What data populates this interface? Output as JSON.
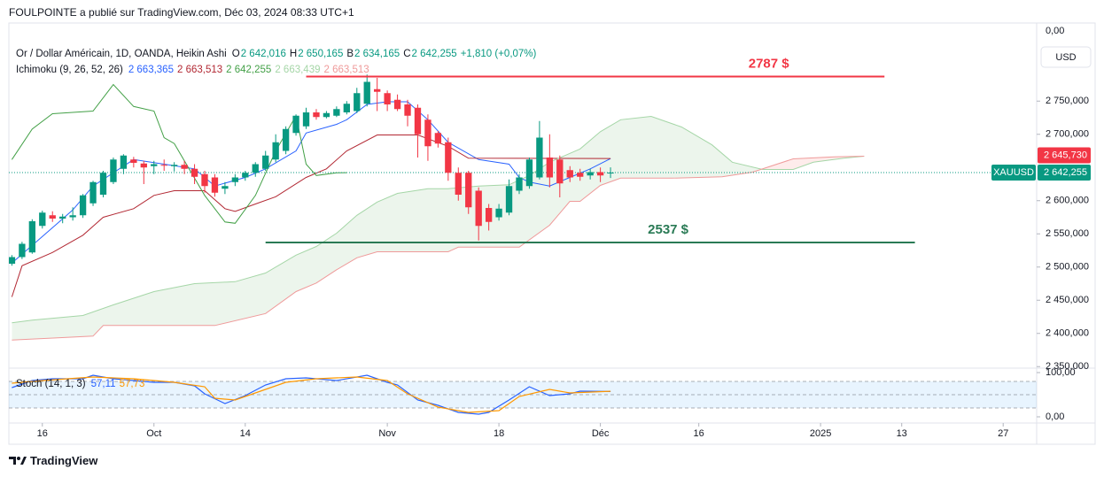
{
  "header": {
    "title": "FOULPOINTE a publié sur TradingView.com, Déc 03, 2024 08:33 UTC+1"
  },
  "footer": {
    "brand": "TradingView"
  },
  "chart_data": {
    "type": "candlestick",
    "legend": {
      "title": "Or / Dollar Américain, 1D, OANDA, Heikin Ashi",
      "ohlc": [
        {
          "key": "O",
          "value": "2 642,016"
        },
        {
          "key": "H",
          "value": "2 650,165"
        },
        {
          "key": "B",
          "value": "2 634,165"
        },
        {
          "key": "C",
          "value": "2 642,255"
        }
      ],
      "change": "+1,810 (+0,07%)"
    },
    "x": [
      -3,
      -2,
      -1,
      0,
      1,
      2,
      3,
      4,
      5,
      6,
      7,
      8,
      9,
      10,
      11,
      12,
      13,
      14,
      15,
      16,
      17,
      18,
      19,
      20,
      21,
      22,
      23,
      24,
      25,
      26,
      27,
      28,
      29,
      30,
      31,
      32,
      33,
      34,
      35,
      36,
      37,
      38,
      39,
      40,
      41,
      42,
      43,
      44,
      45,
      46,
      47,
      48,
      49,
      50,
      51,
      52,
      53,
      54,
      55,
      56
    ],
    "open": [
      2505,
      2515,
      2522,
      2562,
      2578,
      2573,
      2575,
      2578,
      2596,
      2609,
      2628,
      2648,
      2662,
      2656,
      2652,
      2654,
      2652,
      2654,
      2648,
      2640,
      2635,
      2618,
      2628,
      2635,
      2642,
      2648,
      2662,
      2675,
      2702,
      2712,
      2733,
      2726,
      2728,
      2733,
      2735,
      2746,
      2768,
      2762,
      2752,
      2745,
      2740,
      2722,
      2702,
      2688,
      2642,
      2642,
      2615,
      2589,
      2575,
      2582,
      2615,
      2622,
      2635,
      2665,
      2662,
      2646,
      2642,
      2638,
      2643,
      2642.016
    ],
    "high": [
      2518,
      2538,
      2572,
      2585,
      2584,
      2580,
      2590,
      2610,
      2630,
      2645,
      2665,
      2670,
      2666,
      2660,
      2660,
      2662,
      2658,
      2660,
      2655,
      2645,
      2640,
      2628,
      2640,
      2645,
      2658,
      2675,
      2700,
      2712,
      2730,
      2740,
      2738,
      2735,
      2742,
      2750,
      2770,
      2790,
      2785,
      2766,
      2760,
      2752,
      2745,
      2730,
      2705,
      2695,
      2650,
      2645,
      2620,
      2595,
      2595,
      2632,
      2640,
      2665,
      2720,
      2700,
      2668,
      2652,
      2648,
      2648,
      2650,
      2650.165
    ],
    "low": [
      2502,
      2512,
      2520,
      2558,
      2568,
      2566,
      2570,
      2574,
      2592,
      2605,
      2625,
      2640,
      2650,
      2625,
      2640,
      2645,
      2644,
      2640,
      2625,
      2612,
      2606,
      2610,
      2622,
      2630,
      2636,
      2645,
      2658,
      2670,
      2698,
      2708,
      2722,
      2724,
      2726,
      2730,
      2732,
      2742,
      2735,
      2735,
      2735,
      2712,
      2665,
      2660,
      2680,
      2630,
      2600,
      2580,
      2540,
      2555,
      2570,
      2578,
      2610,
      2618,
      2632,
      2620,
      2605,
      2628,
      2630,
      2632,
      2628,
      2634.165
    ],
    "close": [
      2515,
      2535,
      2569,
      2582,
      2573,
      2576,
      2578,
      2608,
      2628,
      2642,
      2662,
      2668,
      2657,
      2650,
      2655,
      2653,
      2654,
      2648,
      2636,
      2622,
      2612,
      2622,
      2635,
      2642,
      2655,
      2668,
      2688,
      2708,
      2728,
      2733,
      2726,
      2732,
      2738,
      2746,
      2762,
      2779,
      2764,
      2745,
      2738,
      2728,
      2700,
      2682,
      2686,
      2642,
      2609,
      2590,
      2562,
      2568,
      2588,
      2622,
      2635,
      2662,
      2695,
      2635,
      2626,
      2635,
      2636,
      2643,
      2638,
      2642.255
    ],
    "up_color": "#089981",
    "down_color": "#f23645",
    "xlim": [
      -3.3,
      98
    ],
    "xticks": [
      {
        "value": 0,
        "label": "16"
      },
      {
        "value": 11,
        "label": "Oct"
      },
      {
        "value": 20,
        "label": "14"
      },
      {
        "value": 34,
        "label": "Nov"
      },
      {
        "value": 45,
        "label": "18"
      },
      {
        "value": 55,
        "label": "Déc"
      },
      {
        "value": 64.7,
        "label": "16"
      },
      {
        "value": 76.7,
        "label": "2025"
      },
      {
        "value": 84.7,
        "label": "13"
      },
      {
        "value": 94.7,
        "label": "27"
      }
    ],
    "ylim": [
      2349,
      2865
    ],
    "yticks": [
      {
        "value": 2350,
        "label": "2 350,000"
      },
      {
        "value": 2400,
        "label": "2 400,000"
      },
      {
        "value": 2450,
        "label": "2 450,000"
      },
      {
        "value": 2500,
        "label": "2 500,000"
      },
      {
        "value": 2550,
        "label": "2 550,000"
      },
      {
        "value": 2600,
        "label": "2 600,000"
      },
      {
        "value": 2700,
        "label": "2 700,000"
      },
      {
        "value": 2750,
        "label": "2 750,000"
      }
    ],
    "top_label": "0,00",
    "currency": "USD",
    "symbol": "XAUUSD",
    "badges": [
      {
        "value": 2645.73,
        "label": "2 645,730",
        "color": "#f23645"
      },
      {
        "value": 2642.255,
        "label": "2 642,255",
        "color": "#089981"
      }
    ],
    "levels": [
      {
        "value": 2787,
        "label": "2787 $",
        "color": "#f23645",
        "x": [
          26,
          83
        ]
      },
      {
        "value": 2537,
        "label": "2537 $",
        "color": "#2a7a55",
        "x": [
          22,
          86
        ]
      }
    ],
    "ichimoku": {
      "title": "Ichimoku (9, 26, 52, 26)",
      "cloud_up_color": "#43a047",
      "cloud_down_color": "#f44336",
      "lines": [
        {
          "color": "#2962ff",
          "legend_value": "2 663,365",
          "x": [
            -3,
            0,
            3,
            5,
            9,
            12,
            15,
            17,
            20,
            22,
            25,
            26,
            29,
            30,
            32,
            34,
            36,
            38,
            40,
            43,
            46,
            47,
            48,
            50,
            52,
            54,
            56
          ],
          "values": [
            2506,
            2546,
            2586,
            2622,
            2662,
            2655,
            2648,
            2622,
            2635,
            2648,
            2675,
            2702,
            2715,
            2722,
            2745,
            2749,
            2749,
            2722,
            2688,
            2662,
            2655,
            2635,
            2628,
            2622,
            2635,
            2648,
            2663.365
          ]
        },
        {
          "color": "#b22833",
          "legend_value": "2 663,513",
          "x": [
            -3,
            -2,
            1,
            4,
            6,
            9,
            11,
            13,
            16,
            18,
            19,
            21,
            23,
            26,
            28,
            30,
            33,
            37,
            40,
            42,
            56
          ],
          "values": [
            2455,
            2502,
            2522,
            2548,
            2575,
            2588,
            2608,
            2615,
            2615,
            2588,
            2584,
            2595,
            2606,
            2635,
            2648,
            2675,
            2699,
            2699,
            2682,
            2664,
            2663.513
          ]
        },
        {
          "color": "#43a047",
          "legend_value": "2 642,255",
          "x": [
            -3,
            -1,
            1,
            5,
            7,
            9,
            11,
            12,
            13,
            16,
            18,
            19,
            21,
            23,
            25,
            26,
            27,
            29,
            30
          ],
          "values": [
            2662,
            2708,
            2731,
            2735,
            2775,
            2742,
            2735,
            2695,
            2686,
            2608,
            2568,
            2566,
            2608,
            2675,
            2728,
            2655,
            2638,
            2642,
            2642.255
          ]
        },
        {
          "color": "#a5d6a7",
          "legend_value": "2 663,439",
          "x": [
            -3,
            -1,
            4,
            7,
            11,
            15,
            19,
            22,
            25,
            27,
            29,
            31,
            33,
            35,
            38,
            40,
            43,
            46,
            48,
            50,
            53,
            55,
            57,
            60,
            63,
            66,
            68,
            71,
            74,
            76,
            79,
            81
          ],
          "values": [
            2416,
            2420,
            2427,
            2443,
            2463,
            2475,
            2478,
            2491,
            2518,
            2531,
            2551,
            2578,
            2598,
            2611,
            2618,
            2618,
            2622,
            2624,
            2638,
            2658,
            2678,
            2704,
            2722,
            2727,
            2711,
            2684,
            2658,
            2647,
            2647,
            2658,
            2664,
            2667
          ]
        },
        {
          "color": "#ef9a9a",
          "legend_value": "2 663,513",
          "x": [
            -3,
            5,
            6,
            17,
            22,
            25,
            27,
            29,
            31,
            33,
            40,
            41,
            47,
            50,
            52,
            53,
            55,
            57,
            62,
            67,
            70,
            74,
            78,
            81
          ],
          "values": [
            2390,
            2396,
            2412,
            2412,
            2430,
            2463,
            2476,
            2496,
            2514,
            2523,
            2523,
            2530,
            2530,
            2563,
            2599,
            2599,
            2623,
            2634,
            2634,
            2636,
            2643,
            2663,
            2666,
            2667
          ]
        }
      ]
    },
    "stoch": {
      "title": "Stoch (14, 1, 3)",
      "ylim": [
        0,
        100
      ],
      "yticks": [
        {
          "value": 100,
          "label": "100,00"
        },
        {
          "value": 0,
          "label": "0,00"
        }
      ],
      "levels": [
        80,
        50,
        20
      ],
      "band_color": "#2196f3",
      "series": [
        {
          "color": "#2962ff",
          "legend_value": "57,11",
          "x": [
            -3,
            -1,
            1,
            4,
            5,
            7,
            9,
            11,
            13,
            15,
            16,
            18,
            20,
            22,
            24,
            26,
            29,
            32,
            34,
            35,
            37,
            39,
            41,
            43,
            44,
            46,
            48,
            50,
            52,
            53,
            56
          ],
          "values": [
            66,
            82,
            86,
            86,
            94,
            86,
            82,
            78,
            78,
            70,
            52,
            30,
            48,
            72,
            86,
            88,
            82,
            94,
            78,
            72,
            38,
            26,
            10,
            6,
            10,
            38,
            68,
            48,
            52,
            58,
            57.11
          ]
        },
        {
          "color": "#ff9800",
          "legend_value": "57,73",
          "x": [
            -3,
            0,
            5,
            9,
            13,
            16,
            17,
            19,
            22,
            24,
            27,
            31,
            34,
            36,
            39,
            42,
            45,
            47,
            50,
            52,
            56
          ],
          "values": [
            76,
            82,
            90,
            86,
            78,
            68,
            42,
            38,
            62,
            78,
            86,
            90,
            82,
            52,
            22,
            10,
            14,
            46,
            62,
            54,
            57.73
          ]
        }
      ]
    }
  }
}
